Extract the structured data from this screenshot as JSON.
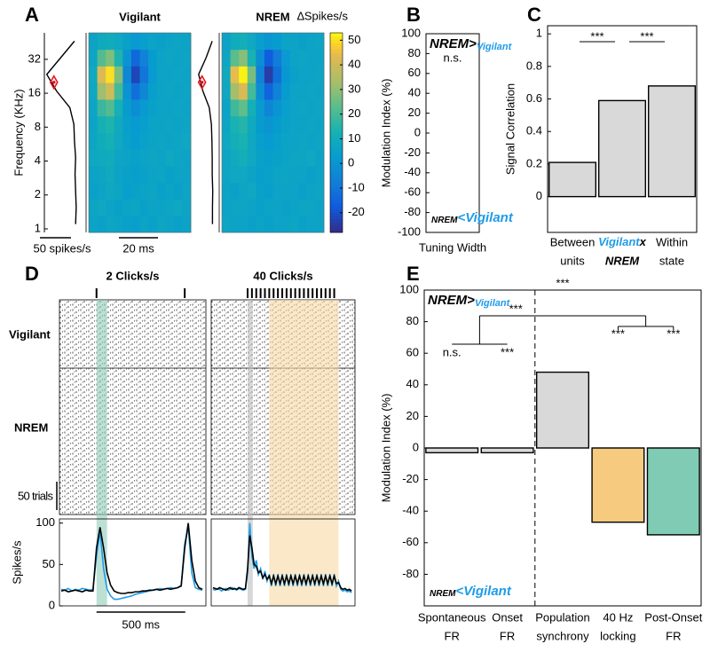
{
  "panel_labels": [
    "A",
    "B",
    "C",
    "D",
    "E"
  ],
  "chart_data": [
    {
      "type": "heatmap",
      "title": "Vigilant",
      "title_color": "#1e9be9",
      "colormap": "parula",
      "clim": [
        -28,
        53
      ],
      "log_y": true,
      "ylim": [
        0.93,
        55
      ],
      "yticks": [
        1,
        2,
        4,
        8,
        16,
        32
      ],
      "ylabel": "Frequency (KHz)",
      "z": [
        [
          6,
          5,
          7,
          6,
          5,
          4,
          6,
          5,
          7,
          6,
          5,
          6
        ],
        [
          7,
          8,
          6,
          5,
          6,
          7,
          5,
          6,
          6,
          7,
          8,
          6
        ],
        [
          5,
          6,
          8,
          7,
          4,
          5,
          6,
          7,
          5,
          6,
          5,
          7
        ],
        [
          6,
          7,
          9,
          6,
          5,
          4,
          5,
          6,
          7,
          5,
          6,
          6
        ],
        [
          8,
          9,
          10,
          7,
          6,
          5,
          6,
          7,
          6,
          8,
          7,
          6
        ],
        [
          7,
          10,
          12,
          8,
          5,
          3,
          5,
          6,
          7,
          6,
          7,
          8
        ],
        [
          6,
          12,
          14,
          9,
          4,
          2,
          4,
          6,
          6,
          7,
          6,
          7
        ],
        [
          7,
          18,
          22,
          12,
          3,
          -2,
          2,
          5,
          6,
          6,
          7,
          6
        ],
        [
          8,
          32,
          40,
          20,
          0,
          -12,
          -4,
          4,
          6,
          7,
          6,
          7
        ],
        [
          9,
          42,
          50,
          28,
          -4,
          -22,
          -10,
          2,
          6,
          6,
          7,
          6
        ],
        [
          7,
          22,
          28,
          14,
          0,
          -14,
          -6,
          3,
          6,
          7,
          6,
          7
        ],
        [
          6,
          9,
          10,
          8,
          5,
          2,
          4,
          6,
          5,
          6,
          7,
          6
        ]
      ],
      "tuning": [
        12,
        11,
        12,
        13,
        12,
        14,
        15,
        22,
        45,
        62,
        38,
        14
      ],
      "tuning_peak": 20,
      "tuning_color": "#e8141e",
      "tuning_scale_label": "50 spikes/s",
      "time_scale_label": "20 ms"
    },
    {
      "type": "heatmap",
      "title": "NREM",
      "title_color": "#000000",
      "colormap": "parula",
      "clim": [
        -28,
        53
      ],
      "log_y": true,
      "ylim": [
        0.93,
        55
      ],
      "z": [
        [
          7,
          6,
          6,
          5,
          6,
          5,
          6,
          6,
          7,
          5,
          6,
          6
        ],
        [
          6,
          7,
          7,
          6,
          5,
          6,
          6,
          5,
          6,
          7,
          7,
          6
        ],
        [
          6,
          5,
          7,
          8,
          5,
          4,
          6,
          6,
          6,
          5,
          6,
          7
        ],
        [
          7,
          8,
          8,
          6,
          4,
          5,
          6,
          7,
          6,
          6,
          5,
          6
        ],
        [
          7,
          9,
          11,
          8,
          5,
          4,
          5,
          6,
          7,
          7,
          8,
          6
        ],
        [
          8,
          11,
          13,
          8,
          4,
          2,
          4,
          6,
          6,
          7,
          6,
          7
        ],
        [
          7,
          13,
          15,
          9,
          3,
          0,
          3,
          5,
          6,
          6,
          7,
          6
        ],
        [
          6,
          19,
          24,
          12,
          2,
          -5,
          0,
          4,
          6,
          7,
          6,
          7
        ],
        [
          8,
          33,
          42,
          20,
          -2,
          -15,
          -6,
          3,
          6,
          6,
          7,
          6
        ],
        [
          9,
          44,
          52,
          27,
          -6,
          -24,
          -12,
          1,
          5,
          6,
          6,
          7
        ],
        [
          7,
          23,
          29,
          13,
          -2,
          -17,
          -8,
          2,
          6,
          7,
          6,
          6
        ],
        [
          6,
          10,
          11,
          8,
          4,
          1,
          3,
          6,
          6,
          5,
          6,
          7
        ]
      ],
      "tuning": [
        12,
        12,
        11,
        13,
        13,
        14,
        16,
        24,
        48,
        64,
        36,
        13
      ],
      "tuning_peak": 20,
      "tuning_color": "#e8141e",
      "colorbar_label": "∆Spikes/s",
      "cticks": [
        -20,
        -10,
        0,
        10,
        20,
        30,
        40,
        50
      ]
    },
    {
      "type": "bar",
      "categories": [
        [
          "Tuning Width"
        ]
      ],
      "values": [
        0
      ],
      "color": "#d9d9d9",
      "ylim": [
        -100,
        100
      ],
      "yticks": [
        -100,
        -80,
        -60,
        -40,
        -20,
        0,
        20,
        40,
        60,
        80,
        100
      ],
      "ylabel": "Modulation Index (%)",
      "above_label": [
        "NREM>",
        "Vigilant"
      ],
      "below_label": [
        "NREM",
        "<Vigilant"
      ],
      "sig": [
        "n.s."
      ],
      "grid": false
    },
    {
      "type": "bar",
      "categories": [
        [
          "Between",
          "units"
        ],
        [
          "Vigilant",
          "x",
          "NREM"
        ],
        [
          "Within",
          "state"
        ]
      ],
      "values": [
        0.21,
        0.59,
        0.68
      ],
      "color": "#d9d9d9",
      "ylim": [
        -0.22,
        1.05
      ],
      "yticks": [
        0,
        0.2,
        0.4,
        0.6,
        0.8,
        1
      ],
      "ylabel": "Signal Correlation",
      "pair_sig": [
        {
          "pair": [
            0,
            1
          ],
          "label": "***"
        },
        {
          "pair": [
            1,
            2
          ],
          "label": "***"
        }
      ],
      "grid": false
    },
    {
      "type": "psth",
      "title": "2 Clicks/s",
      "xlim": [
        -210,
        620
      ],
      "ylim": [
        0,
        105
      ],
      "yticks": [
        0,
        50,
        100
      ],
      "ylabel": "Spikes/s",
      "clicks": [
        0,
        500
      ],
      "highlights": [
        {
          "range": [
            0,
            60
          ],
          "color": "#8fcdb8"
        }
      ],
      "trials_label": "50 trials",
      "time_scale_label": "500 ms",
      "x": [
        -200,
        -180,
        -160,
        -140,
        -120,
        -100,
        -80,
        -60,
        -40,
        -20,
        0,
        20,
        40,
        60,
        80,
        100,
        120,
        140,
        160,
        180,
        200,
        220,
        240,
        260,
        280,
        300,
        320,
        340,
        360,
        380,
        400,
        420,
        440,
        460,
        480,
        500,
        520,
        540,
        560,
        580,
        600
      ],
      "series": [
        {
          "name": "Vigilant",
          "color": "#1e9be9",
          "values": [
            20,
            19,
            21,
            18,
            20,
            19,
            21,
            20,
            19,
            20,
            60,
            90,
            45,
            20,
            12,
            8,
            8,
            9,
            10,
            11,
            12,
            14,
            15,
            16,
            17,
            18,
            19,
            20,
            21,
            20,
            21,
            22,
            21,
            22,
            25,
            75,
            95,
            40,
            22,
            20,
            19
          ]
        },
        {
          "name": "NREM",
          "color": "#000000",
          "values": [
            18,
            19,
            17,
            18,
            19,
            18,
            17,
            19,
            18,
            18,
            70,
            95,
            70,
            40,
            25,
            18,
            16,
            15,
            15,
            16,
            16,
            17,
            17,
            18,
            18,
            19,
            19,
            20,
            19,
            20,
            21,
            20,
            21,
            22,
            24,
            70,
            100,
            55,
            30,
            22,
            20
          ]
        }
      ]
    },
    {
      "type": "psth",
      "title": "40 Clicks/s",
      "xlim": [
        -210,
        620
      ],
      "ylim": [
        0,
        105
      ],
      "clicks": [
        0,
        25,
        50,
        75,
        100,
        125,
        150,
        175,
        200,
        225,
        250,
        275,
        300,
        325,
        350,
        375,
        400,
        425,
        450,
        475,
        500
      ],
      "highlights": [
        {
          "range": [
            0,
            30
          ],
          "color": "#bcbcbc"
        },
        {
          "range": [
            125,
            525
          ],
          "color": "#f7d9a3"
        }
      ],
      "x": [
        -200,
        -187.5,
        -175,
        -162.5,
        -150,
        -137.5,
        -125,
        -112.5,
        -100,
        -87.5,
        -75,
        -62.5,
        -50,
        -37.5,
        -25,
        -12.5,
        0,
        12.5,
        25,
        37.5,
        50,
        62.5,
        75,
        87.5,
        100,
        112.5,
        125,
        137.5,
        150,
        162.5,
        175,
        187.5,
        200,
        212.5,
        225,
        237.5,
        250,
        262.5,
        275,
        287.5,
        300,
        312.5,
        325,
        337.5,
        350,
        362.5,
        375,
        387.5,
        400,
        412.5,
        425,
        437.5,
        450,
        462.5,
        475,
        487.5,
        500,
        512.5,
        525,
        537.5,
        550,
        562.5,
        575,
        587.5,
        600
      ],
      "series": [
        {
          "color": "#1e9be9",
          "values": [
            20,
            19,
            21,
            20,
            18,
            20,
            21,
            19,
            20,
            22,
            20,
            19,
            21,
            20,
            19,
            20,
            40,
            100,
            60,
            45,
            55,
            38,
            45,
            32,
            42,
            30,
            38,
            24,
            38,
            24,
            38,
            24,
            38,
            24,
            38,
            24,
            38,
            24,
            38,
            24,
            38,
            24,
            38,
            24,
            38,
            24,
            38,
            24,
            38,
            24,
            38,
            24,
            38,
            24,
            38,
            24,
            38,
            24,
            30,
            20,
            18,
            19,
            17,
            18,
            16
          ]
        },
        {
          "color": "#000000",
          "values": [
            22,
            21,
            20,
            22,
            21,
            20,
            19,
            21,
            22,
            20,
            21,
            20,
            22,
            21,
            20,
            21,
            45,
            85,
            70,
            50,
            48,
            40,
            42,
            34,
            38,
            32,
            36,
            27,
            36,
            27,
            36,
            27,
            36,
            27,
            36,
            27,
            36,
            27,
            36,
            27,
            36,
            27,
            36,
            27,
            36,
            27,
            36,
            27,
            36,
            27,
            36,
            27,
            36,
            27,
            36,
            27,
            36,
            27,
            28,
            22,
            20,
            21,
            19,
            20,
            18
          ]
        }
      ]
    },
    {
      "type": "bar",
      "categories": [
        [
          "Spontaneous",
          "FR"
        ],
        [
          "Onset",
          "FR"
        ],
        [
          "Population",
          "synchrony"
        ],
        [
          "40 Hz",
          "locking"
        ],
        [
          "Post-Onset",
          "FR"
        ]
      ],
      "values": [
        -3,
        -3,
        48,
        -47,
        -55
      ],
      "colors": [
        "#d9d9d9",
        "#d9d9d9",
        "#d9d9d9",
        "#f6cb7f",
        "#7fcbb3"
      ],
      "label_colors": [
        "#000000",
        "#808080",
        "#000000",
        "#f0a30a",
        "#17977a"
      ],
      "ylim": [
        -100,
        100
      ],
      "yticks": [
        -80,
        -60,
        -40,
        -20,
        0,
        20,
        40,
        60,
        80,
        100
      ],
      "ylabel": "Modulation Index (%)",
      "above_label": [
        "NREM>",
        "Vigilant"
      ],
      "below_label": [
        "NREM",
        "<Vigilant"
      ],
      "sig": [
        "n.s.",
        "***",
        "***",
        "***",
        "***"
      ],
      "group_sig": "***",
      "grid": false
    }
  ]
}
